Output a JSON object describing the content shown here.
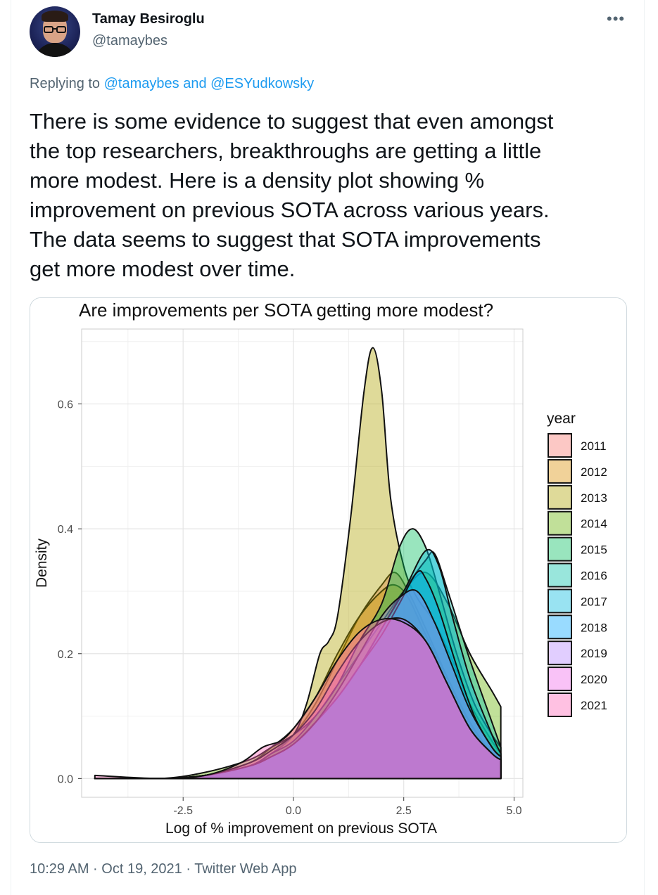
{
  "user": {
    "display_name": "Tamay Besiroglu",
    "handle": "@tamaybes"
  },
  "reply": {
    "prefix": "Replying to",
    "mentions": "@tamaybes and @ESYudkowsky"
  },
  "tweet": {
    "text": "There is some evidence to suggest that even amongst\nthe top researchers, breakthroughs are getting a little\nmore modest. Here is a density plot showing %\nimprovement on previous SOTA across various years.\nThe data seems to suggest that SOTA improvements\nget more modest over time."
  },
  "meta": {
    "timestamp": "10:29 AM · Oct 19, 2021 · Twitter Web App"
  },
  "icons": {
    "more": "more-horizontal-icon",
    "avatar": "avatar-photo"
  },
  "chart_data": {
    "type": "area",
    "title": "Are improvements per SOTA getting more modest?",
    "xlabel": "Log of % improvement on previous SOTA",
    "ylabel": "Density",
    "xlim": [
      -4.8,
      5.2
    ],
    "ylim": [
      -0.03,
      0.72
    ],
    "xticks": [
      -2.5,
      0.0,
      2.5,
      5.0
    ],
    "xtick_labels": [
      "-2.5",
      "0.0",
      "2.5",
      "5.0"
    ],
    "yticks": [
      0.0,
      0.2,
      0.4,
      0.6
    ],
    "ytick_labels": [
      "0.0",
      "0.2",
      "0.4",
      "0.6"
    ],
    "grid": true,
    "legend_title": "year",
    "legend_position": "right",
    "series": [
      {
        "name": "2011",
        "color": "#F8766D",
        "x": [
          -4.5,
          -3,
          -2,
          -1,
          -0.5,
          0,
          0.5,
          1,
          1.5,
          2,
          2.3,
          2.6,
          3,
          3.5,
          4,
          4.5,
          4.7
        ],
        "y": [
          0.0,
          0.0,
          0.005,
          0.02,
          0.04,
          0.07,
          0.12,
          0.19,
          0.26,
          0.31,
          0.33,
          0.3,
          0.24,
          0.16,
          0.09,
          0.04,
          0.03
        ]
      },
      {
        "name": "2012",
        "color": "#DB8E00",
        "x": [
          -4.5,
          -3,
          -2,
          -1,
          -0.5,
          0,
          0.5,
          1,
          1.5,
          2,
          2.3,
          2.6,
          3,
          3.5,
          4,
          4.5,
          4.7
        ],
        "y": [
          0.0,
          0.0,
          0.005,
          0.025,
          0.05,
          0.08,
          0.13,
          0.2,
          0.26,
          0.3,
          0.31,
          0.29,
          0.23,
          0.16,
          0.09,
          0.04,
          0.03
        ]
      },
      {
        "name": "2013",
        "color": "#AEA200",
        "x": [
          -4.5,
          -3,
          -2,
          -1,
          -0.5,
          0,
          0.3,
          0.6,
          0.8,
          1.0,
          1.3,
          1.6,
          1.8,
          2.0,
          2.2,
          2.5,
          2.8,
          3.2,
          3.6,
          4.0,
          4.5,
          4.7
        ],
        "y": [
          0.0,
          0.0,
          0.005,
          0.02,
          0.04,
          0.07,
          0.12,
          0.2,
          0.22,
          0.26,
          0.42,
          0.62,
          0.69,
          0.62,
          0.45,
          0.34,
          0.29,
          0.25,
          0.19,
          0.12,
          0.06,
          0.04
        ]
      },
      {
        "name": "2014",
        "color": "#64B200",
        "x": [
          -4.5,
          -3,
          -2,
          -1,
          -0.5,
          0,
          0.5,
          1,
          1.5,
          2,
          2.5,
          3,
          3.5,
          4,
          4.5,
          4.7
        ],
        "y": [
          0.0,
          0.0,
          0.01,
          0.03,
          0.05,
          0.07,
          0.1,
          0.15,
          0.2,
          0.25,
          0.3,
          0.33,
          0.28,
          0.2,
          0.14,
          0.115
        ]
      },
      {
        "name": "2015",
        "color": "#00BD5C",
        "x": [
          -4.5,
          -3,
          -2,
          -1,
          -0.5,
          0,
          0.5,
          1,
          1.5,
          2,
          2.4,
          2.7,
          3.0,
          3.3,
          3.7,
          4.1,
          4.5,
          4.7
        ],
        "y": [
          0.0,
          0.0,
          0.005,
          0.02,
          0.04,
          0.06,
          0.1,
          0.15,
          0.22,
          0.28,
          0.37,
          0.4,
          0.37,
          0.3,
          0.2,
          0.12,
          0.07,
          0.05
        ]
      },
      {
        "name": "2016",
        "color": "#00C1A7",
        "x": [
          -4.5,
          -3,
          -2,
          -1,
          -0.5,
          0,
          0.5,
          1,
          1.5,
          2,
          2.5,
          3.0,
          3.2,
          3.5,
          4.0,
          4.5,
          4.7
        ],
        "y": [
          0.0,
          0.0,
          0.005,
          0.02,
          0.035,
          0.055,
          0.09,
          0.13,
          0.18,
          0.24,
          0.3,
          0.35,
          0.36,
          0.3,
          0.19,
          0.09,
          0.05
        ]
      },
      {
        "name": "2017",
        "color": "#00BADE",
        "x": [
          -4.5,
          -3,
          -2,
          -1,
          -0.5,
          0,
          0.5,
          1,
          1.5,
          2,
          2.5,
          3.0,
          3.3,
          3.6,
          4.0,
          4.5,
          4.7
        ],
        "y": [
          0.0,
          0.0,
          0.005,
          0.02,
          0.035,
          0.055,
          0.09,
          0.13,
          0.18,
          0.24,
          0.3,
          0.365,
          0.34,
          0.26,
          0.16,
          0.07,
          0.04
        ]
      },
      {
        "name": "2018",
        "color": "#00A6FF",
        "x": [
          -4.5,
          -3,
          -2,
          -1,
          -0.5,
          0,
          0.5,
          1,
          1.5,
          2,
          2.4,
          2.8,
          3.0,
          3.3,
          3.7,
          4.1,
          4.5,
          4.7
        ],
        "y": [
          0.0,
          0.0,
          0.005,
          0.02,
          0.035,
          0.055,
          0.09,
          0.13,
          0.18,
          0.23,
          0.28,
          0.33,
          0.32,
          0.27,
          0.18,
          0.1,
          0.05,
          0.035
        ]
      },
      {
        "name": "2019",
        "color": "#B385FF",
        "x": [
          -4.5,
          -3,
          -2,
          -1,
          -0.5,
          0,
          0.5,
          1,
          1.5,
          2,
          2.4,
          2.8,
          3.2,
          3.6,
          4.0,
          4.5,
          4.7
        ],
        "y": [
          0.0,
          0.0,
          0.005,
          0.02,
          0.035,
          0.055,
          0.09,
          0.14,
          0.2,
          0.26,
          0.29,
          0.3,
          0.25,
          0.18,
          0.11,
          0.05,
          0.035
        ]
      },
      {
        "name": "2020",
        "color": "#EF67EB",
        "x": [
          -4.5,
          -3,
          -2,
          -1,
          -0.5,
          0,
          0.5,
          1,
          1.5,
          2,
          2.5,
          3,
          3.5,
          4,
          4.5,
          4.7
        ],
        "y": [
          0.0,
          0.0,
          0.005,
          0.025,
          0.045,
          0.07,
          0.11,
          0.17,
          0.22,
          0.25,
          0.255,
          0.22,
          0.15,
          0.08,
          0.04,
          0.03
        ]
      },
      {
        "name": "2021",
        "color": "#FF63B6",
        "x": [
          -4.5,
          -3,
          -2,
          -1.2,
          -0.7,
          -0.3,
          0,
          0.5,
          1,
          1.5,
          2,
          2.5,
          3,
          3.5,
          4,
          4.5,
          4.7
        ],
        "y": [
          0.005,
          0.0,
          0.005,
          0.025,
          0.05,
          0.06,
          0.08,
          0.13,
          0.19,
          0.235,
          0.255,
          0.25,
          0.22,
          0.15,
          0.08,
          0.04,
          0.03
        ]
      }
    ]
  }
}
